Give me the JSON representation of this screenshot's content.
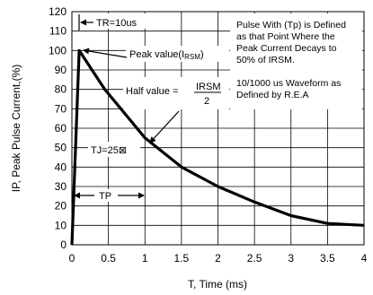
{
  "chart_data": {
    "type": "line",
    "title": "",
    "xlabel": "T, Time (ms)",
    "ylabel": "IP, Peak Pulse Current,(%)",
    "xlim": [
      0,
      4
    ],
    "ylim": [
      0,
      120
    ],
    "x_ticks": [
      "0",
      "0.5",
      "1",
      "1.5",
      "2",
      "2.5",
      "3",
      "3.5",
      "4"
    ],
    "y_ticks": [
      "0",
      "10",
      "20",
      "30",
      "40",
      "50",
      "60",
      "70",
      "80",
      "90",
      "100",
      "110",
      "120"
    ],
    "grid": true,
    "series": [
      {
        "x": [
          0,
          0.1,
          0.45,
          1.0,
          1.5,
          2.0,
          2.5,
          3.0,
          3.5,
          4.0
        ],
        "y": [
          0,
          100,
          80,
          55,
          40,
          30,
          22,
          15,
          11,
          10
        ]
      }
    ],
    "annotations": {
      "tr_label": "TR=10us",
      "peak_label": "Peak value(I",
      "peak_sub": "RSM",
      "peak_close": ")",
      "half_label": "Half value  =",
      "frac_num": "IRSM",
      "frac_den": "2",
      "tj_label": "TJ=25",
      "tj_symbol": "⊠",
      "tp_label": "TP",
      "note1_line1": "Pulse With (Tp) is Defined",
      "note1_line2": "as that Point Where the",
      "note1_line3": "Peak Current Decays to",
      "note1_line4": "50% of  IRSM.",
      "note2_line1": "10/1000 us Waveform as",
      "note2_line2": "Defined by R.E.A"
    }
  }
}
